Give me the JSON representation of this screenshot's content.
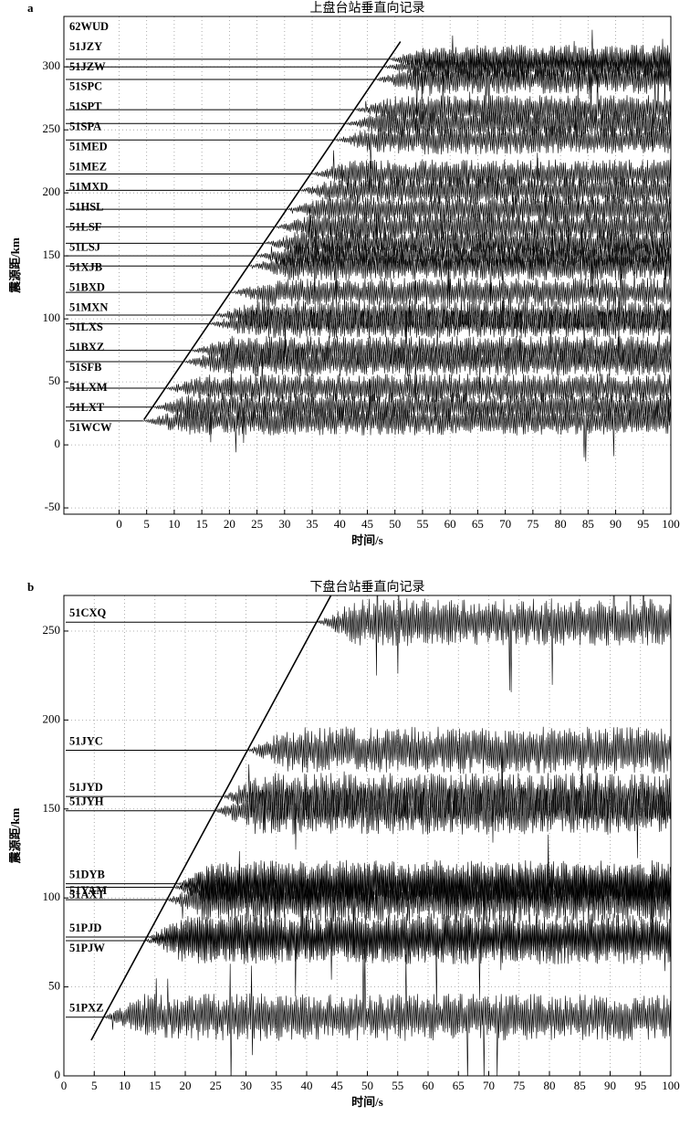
{
  "chart_data": [
    {
      "type": "record-section",
      "panel": "a",
      "title": "上盘台站垂直向记录",
      "xlabel": "时间/s",
      "ylabel": "震源距/km",
      "xlim": [
        -10,
        100
      ],
      "ylim": [
        -55,
        340
      ],
      "xticks": [
        0,
        5,
        10,
        15,
        20,
        25,
        30,
        35,
        40,
        45,
        50,
        55,
        60,
        65,
        70,
        75,
        80,
        85,
        90,
        95,
        100
      ],
      "yticks": [
        -50,
        0,
        50,
        100,
        150,
        200,
        250,
        300
      ],
      "grid": true,
      "color": "#000000",
      "reference_line": {
        "x": [
          4.5,
          51
        ],
        "y": [
          20,
          320
        ]
      },
      "stations": [
        {
          "name": "62WUD",
          "distance": 306
        },
        {
          "name": "51JZY",
          "distance": 300
        },
        {
          "name": "51JZW",
          "distance": 290
        },
        {
          "name": "51SPC",
          "distance": 266
        },
        {
          "name": "51SPT",
          "distance": 255
        },
        {
          "name": "51SPA",
          "distance": 242
        },
        {
          "name": "51MED",
          "distance": 215
        },
        {
          "name": "51MEZ",
          "distance": 202
        },
        {
          "name": "51MXD",
          "distance": 187
        },
        {
          "name": "51HSL",
          "distance": 173
        },
        {
          "name": "51LSF",
          "distance": 160
        },
        {
          "name": "51LSJ",
          "distance": 150
        },
        {
          "name": "51XJB",
          "distance": 142
        },
        {
          "name": "51BXD",
          "distance": 121
        },
        {
          "name": "51MXN",
          "distance": 103
        },
        {
          "name": "51LXS",
          "distance": 96
        },
        {
          "name": "51BXZ",
          "distance": 75
        },
        {
          "name": "51SFB",
          "distance": 66
        },
        {
          "name": "51LXM",
          "distance": 45
        },
        {
          "name": "51LXT",
          "distance": 30
        },
        {
          "name": "51WCW",
          "distance": 19
        }
      ]
    },
    {
      "type": "record-section",
      "panel": "b",
      "title": "下盘台站垂直向记录",
      "xlabel": "时间/s",
      "ylabel": "震源距/km",
      "xlim": [
        0,
        100
      ],
      "ylim": [
        0,
        270
      ],
      "xticks": [
        0,
        5,
        10,
        15,
        20,
        25,
        30,
        35,
        40,
        45,
        50,
        55,
        60,
        65,
        70,
        75,
        80,
        85,
        90,
        95,
        100
      ],
      "yticks": [
        0,
        50,
        100,
        150,
        200,
        250
      ],
      "grid": true,
      "color": "#000000",
      "reference_line": {
        "x": [
          4.5,
          44
        ],
        "y": [
          20,
          270
        ]
      },
      "stations": [
        {
          "name": "51CXQ",
          "distance": 255
        },
        {
          "name": "51JYC",
          "distance": 183
        },
        {
          "name": "51JYD",
          "distance": 157
        },
        {
          "name": "51JYH",
          "distance": 149
        },
        {
          "name": "51DYB",
          "distance": 108
        },
        {
          "name": "51AXT",
          "distance": 106
        },
        {
          "name": "51YAM",
          "distance": 99
        },
        {
          "name": "51PJD",
          "distance": 78
        },
        {
          "name": "51PJW",
          "distance": 76
        },
        {
          "name": "51PXZ",
          "distance": 33
        }
      ]
    }
  ]
}
